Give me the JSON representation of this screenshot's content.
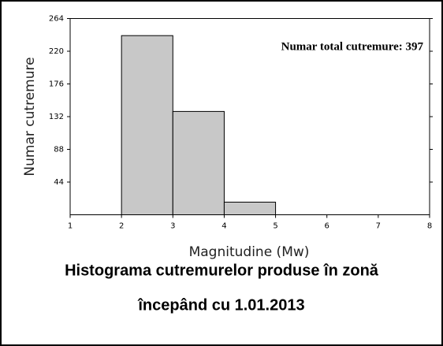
{
  "chart_data": {
    "type": "histogram",
    "ylabel": "Numar cutremure",
    "xlabel": "Magnitudine (Mw)",
    "annotation": "Numar total cutremure: 397",
    "caption": [
      "Histograma cutremurelor produse în zonă",
      "începând cu 1.01.2013"
    ],
    "bins": [
      1,
      2,
      3,
      4,
      5,
      6,
      7,
      8
    ],
    "values": [
      0,
      241,
      139,
      17,
      0,
      0,
      0
    ],
    "color": "#c8c8c8",
    "xlim": [
      1,
      8
    ],
    "xticks": [
      1,
      2,
      3,
      4,
      5,
      6,
      7,
      8
    ],
    "ylim": [
      0,
      264
    ],
    "yticks": [
      44,
      88,
      132,
      176,
      220,
      264
    ]
  }
}
